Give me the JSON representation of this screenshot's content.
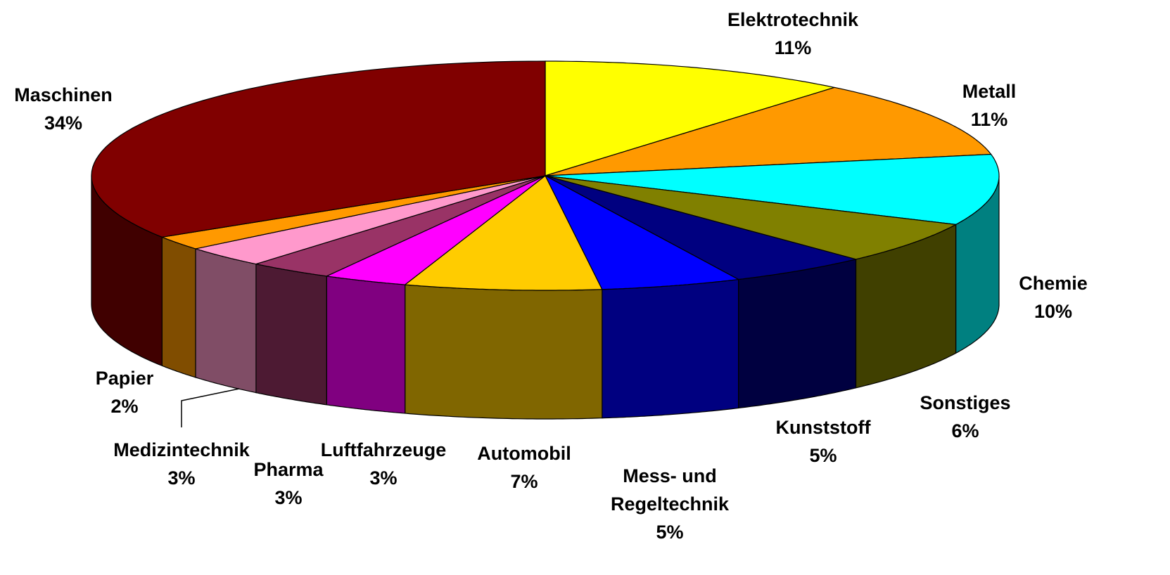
{
  "chart_data": {
    "type": "pie3d",
    "categories": [
      "Elektrotechnik",
      "Metall",
      "Chemie",
      "Sonstiges",
      "Kunststoff",
      "Mess- und Regeltechnik",
      "Automobil",
      "Luftfahrzeuge",
      "Pharma",
      "Medizintechnik",
      "Papier",
      "Maschinen"
    ],
    "values": [
      11,
      11,
      10,
      6,
      5,
      5,
      7,
      3,
      3,
      3,
      2,
      34
    ],
    "value_labels": [
      "11%",
      "11%",
      "10%",
      "6%",
      "5%",
      "5%",
      "7%",
      "3%",
      "3%",
      "3%",
      "2%",
      "34%"
    ],
    "colors": [
      "#ffff00",
      "#ff9900",
      "#00ffff",
      "#808000",
      "#000080",
      "#0000ff",
      "#ffcc00",
      "#ff00ff",
      "#993366",
      "#ff99cc",
      "#ff9900",
      "#800000"
    ]
  }
}
